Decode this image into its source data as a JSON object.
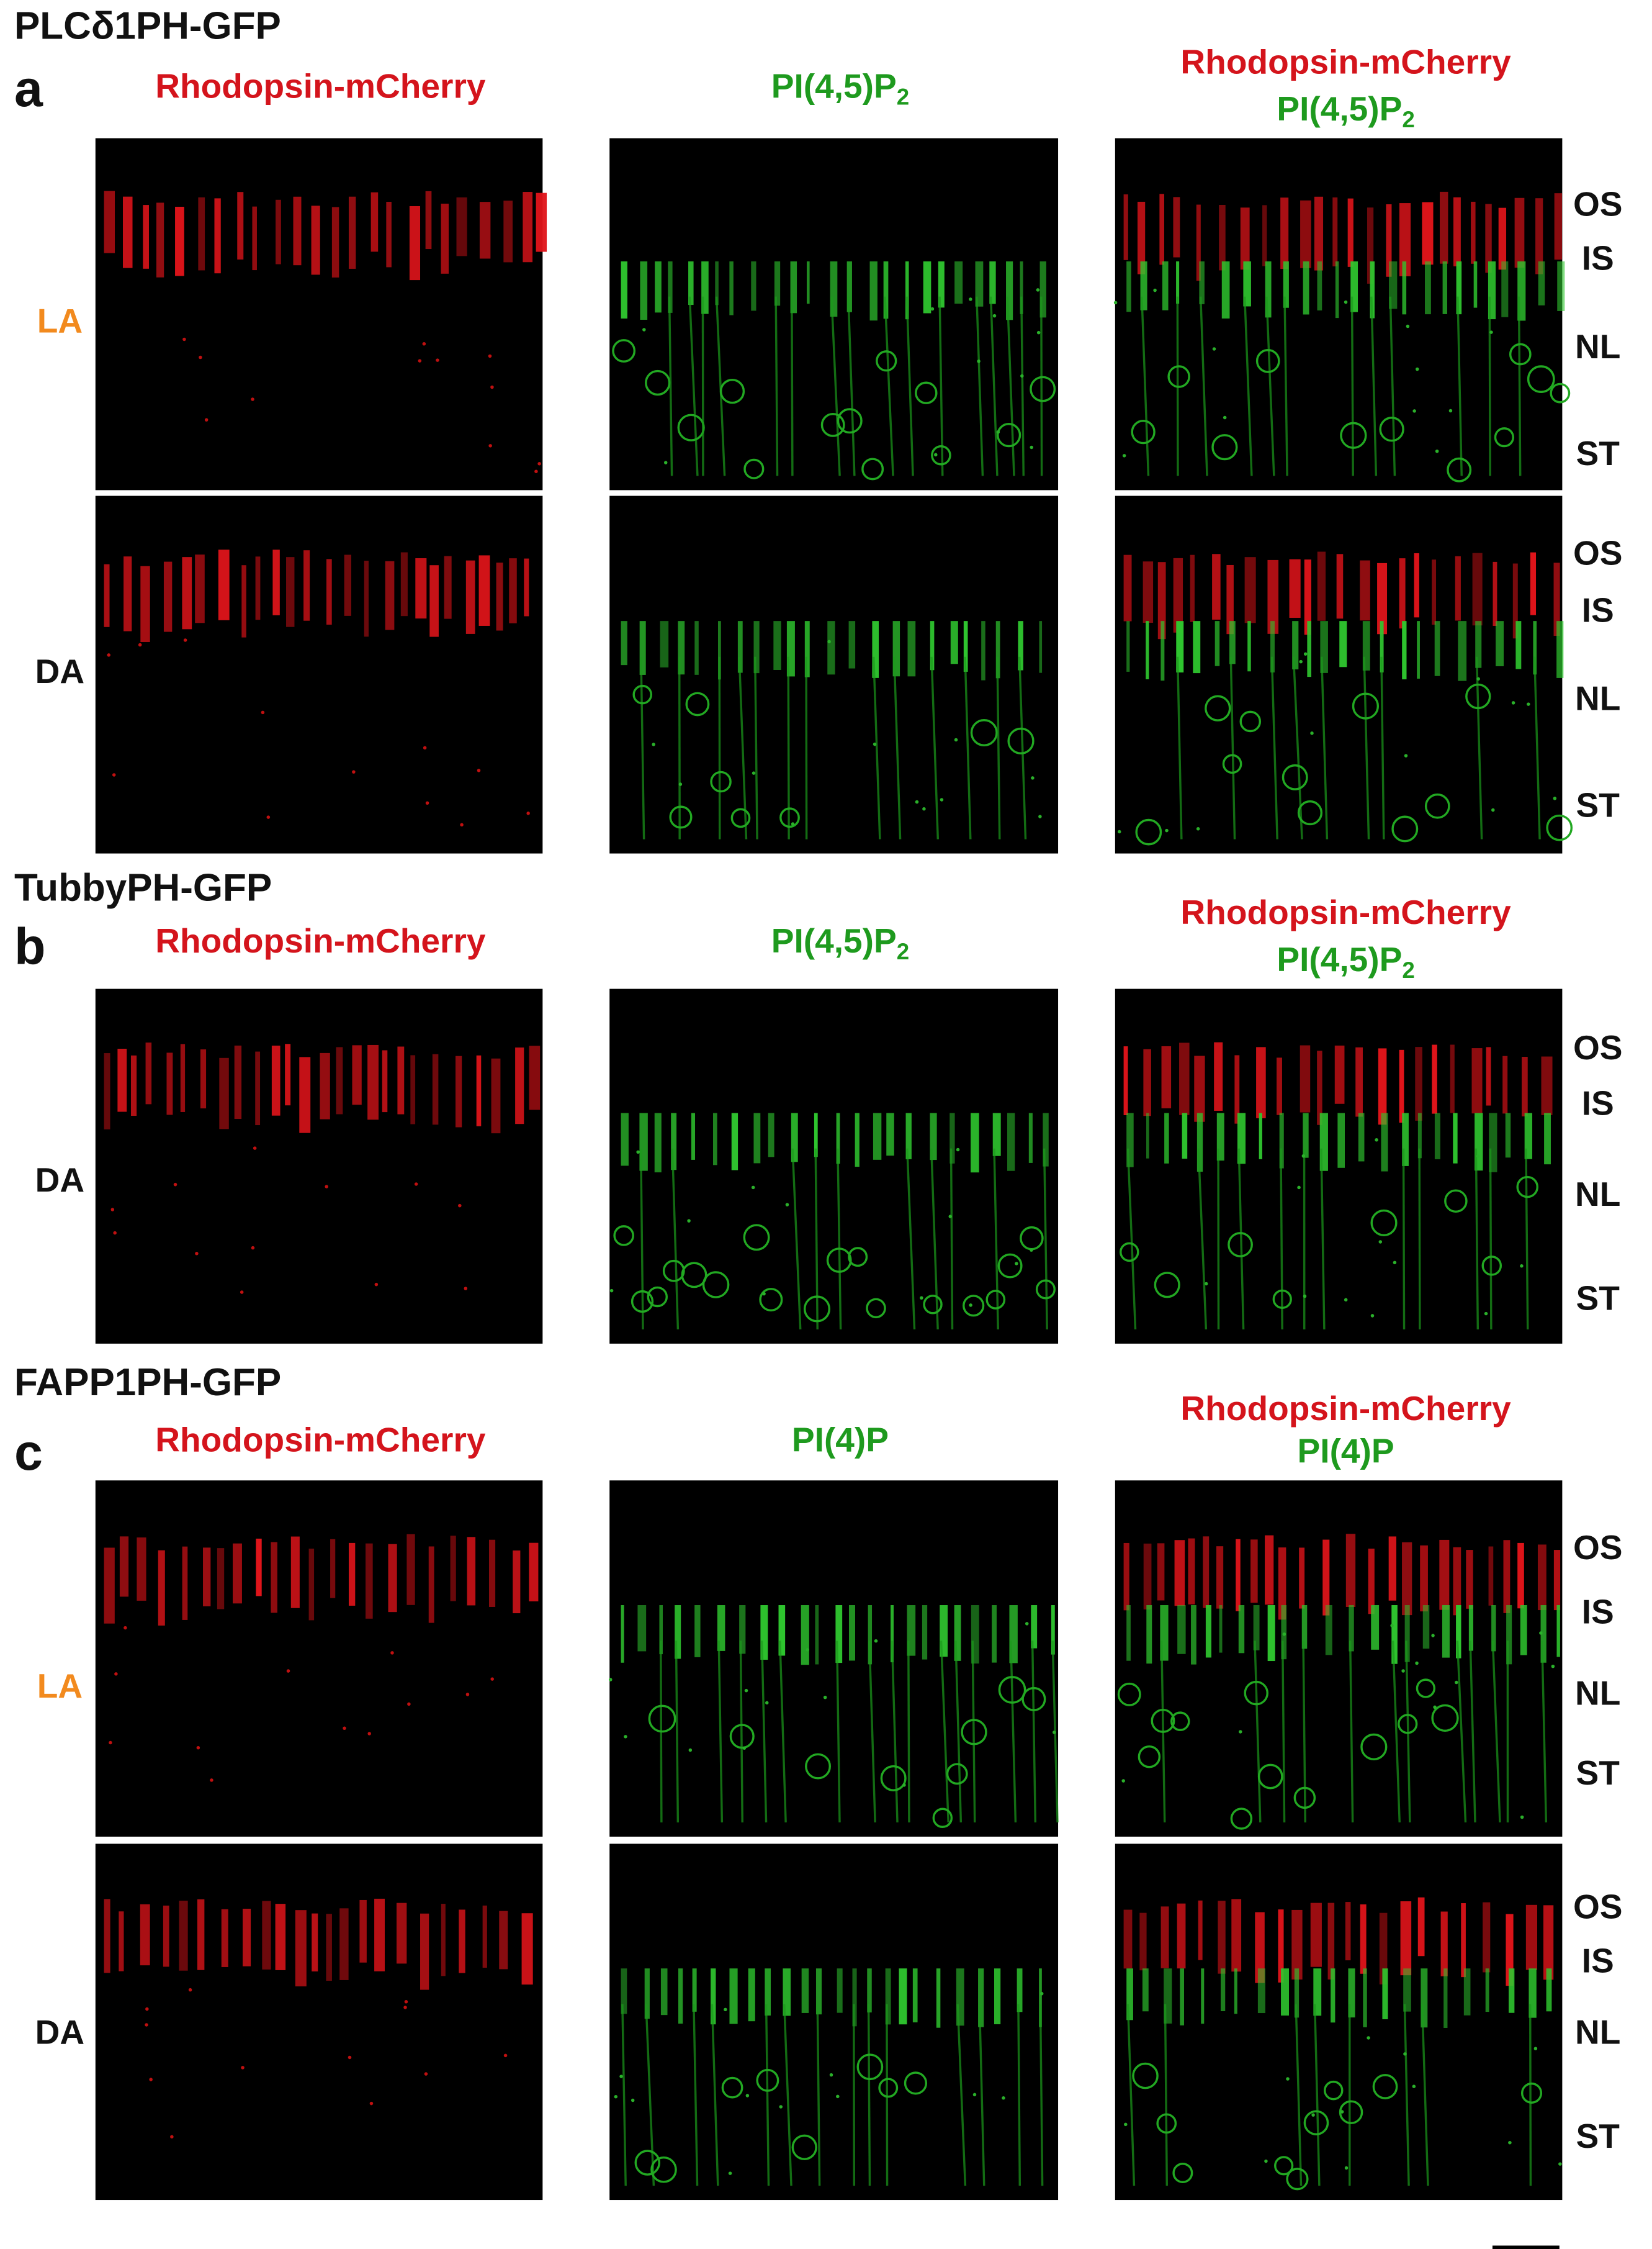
{
  "panels": [
    {
      "title": "PLCδ1PH-GFP",
      "letter": "a",
      "columns": [
        {
          "red": "Rhodopsin-mCherry"
        },
        {
          "green": "PI(4,5)P",
          "green_sub": "2"
        },
        {
          "red": "Rhodopsin-mCherry",
          "green": "PI(4,5)P",
          "green_sub": "2"
        }
      ],
      "rows": [
        {
          "condition": "LA",
          "layers": [
            "OS",
            "IS",
            "NL",
            "ST"
          ]
        },
        {
          "condition": "DA",
          "layers": [
            "OS",
            "IS",
            "NL",
            "ST"
          ]
        }
      ]
    },
    {
      "title": "TubbyPH-GFP",
      "letter": "b",
      "columns": [
        {
          "red": "Rhodopsin-mCherry"
        },
        {
          "green": "PI(4,5)P",
          "green_sub": "2"
        },
        {
          "red": "Rhodopsin-mCherry",
          "green": "PI(4,5)P",
          "green_sub": "2"
        }
      ],
      "rows": [
        {
          "condition": "DA",
          "layers": [
            "OS",
            "IS",
            "NL",
            "ST"
          ]
        }
      ]
    },
    {
      "title": "FAPP1PH-GFP",
      "letter": "c",
      "columns": [
        {
          "red": "Rhodopsin-mCherry"
        },
        {
          "green": "PI(4)P"
        },
        {
          "red": "Rhodopsin-mCherry",
          "green": "PI(4)P"
        }
      ],
      "rows": [
        {
          "condition": "LA",
          "layers": [
            "OS",
            "IS",
            "NL",
            "ST"
          ]
        },
        {
          "condition": "DA",
          "layers": [
            "OS",
            "IS",
            "NL",
            "ST"
          ]
        }
      ]
    }
  ]
}
